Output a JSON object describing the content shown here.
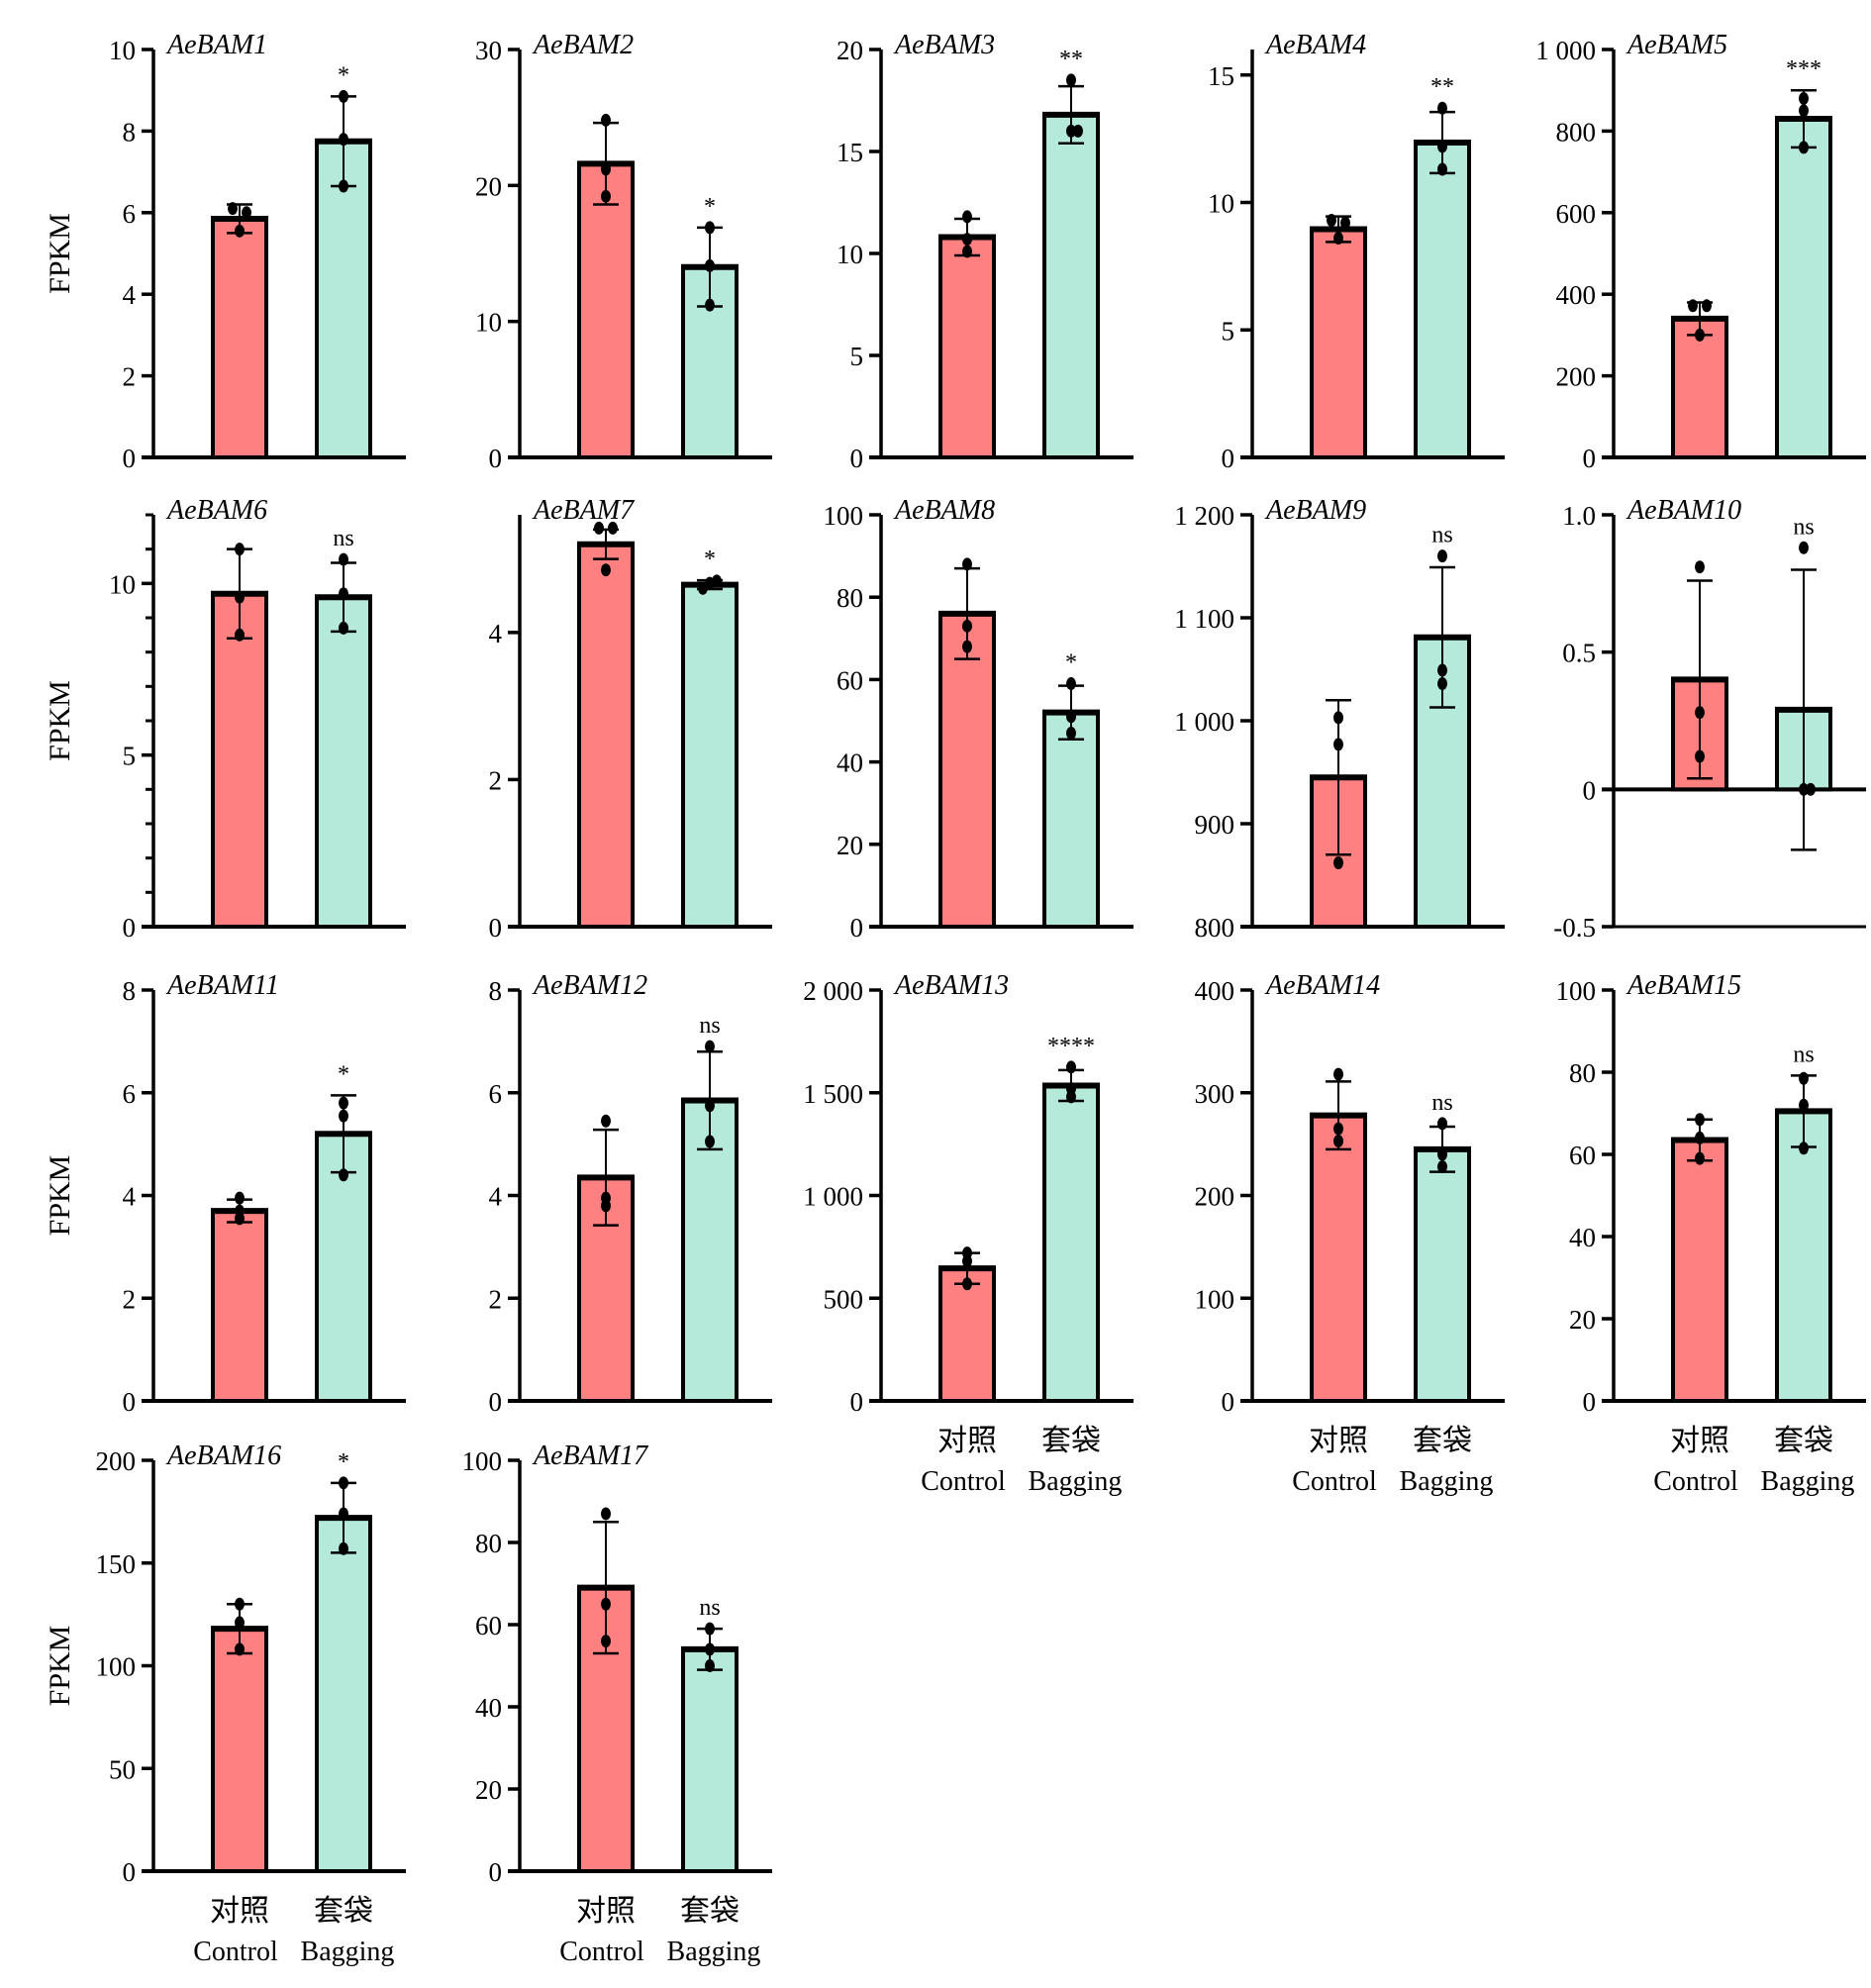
{
  "figure": {
    "y_axis_label": "FPKM",
    "group_labels_cn": [
      "对照",
      "套袋"
    ],
    "group_labels_en": [
      "Control",
      "Bagging"
    ],
    "colors": {
      "control": "#FF8080",
      "bagging": "#B5E9D9",
      "outline": "#000000"
    }
  },
  "chart_data": [
    {
      "type": "bar",
      "title": "AeBAM1",
      "ylabel": "FPKM",
      "categories": [
        "Control",
        "Bagging"
      ],
      "ylim": [
        0,
        10
      ],
      "yticks": [
        0,
        2,
        4,
        6,
        8,
        10
      ],
      "ytick_labels": [
        "0",
        "2",
        "4",
        "6",
        "8",
        "10"
      ],
      "values": [
        5.85,
        7.75
      ],
      "sd": [
        0.35,
        1.1
      ],
      "points": [
        [
          6.1,
          6.0,
          5.55
        ],
        [
          8.85,
          7.8,
          6.65
        ]
      ],
      "significance": "*"
    },
    {
      "type": "bar",
      "title": "AeBAM2",
      "ylabel": "",
      "categories": [
        "Control",
        "Bagging"
      ],
      "ylim": [
        0,
        30
      ],
      "yticks": [
        0,
        10,
        20,
        30
      ],
      "ytick_labels": [
        "0",
        "10",
        "20",
        "30"
      ],
      "values": [
        21.6,
        14.0
      ],
      "sd": [
        3.0,
        2.9
      ],
      "points": [
        [
          24.8,
          21.2,
          19.2
        ],
        [
          16.9,
          14.1,
          11.2
        ]
      ],
      "significance": "*"
    },
    {
      "type": "bar",
      "title": "AeBAM3",
      "ylabel": "",
      "categories": [
        "Control",
        "Bagging"
      ],
      "ylim": [
        0,
        20
      ],
      "yticks": [
        0,
        5,
        10,
        15,
        20
      ],
      "ytick_labels": [
        "0",
        "5",
        "10",
        "15",
        "20"
      ],
      "values": [
        10.8,
        16.8
      ],
      "sd": [
        0.9,
        1.4
      ],
      "points": [
        [
          11.8,
          10.7,
          10.1
        ],
        [
          18.5,
          16.0,
          16.0
        ]
      ],
      "significance": "**"
    },
    {
      "type": "bar",
      "title": "AeBAM4",
      "ylabel": "",
      "categories": [
        "Control",
        "Bagging"
      ],
      "ylim": [
        0,
        16
      ],
      "yticks": [
        0,
        5,
        10,
        15
      ],
      "ytick_labels": [
        "0",
        "5",
        "10",
        "15"
      ],
      "values": [
        8.95,
        12.35
      ],
      "sd": [
        0.5,
        1.2
      ],
      "points": [
        [
          9.3,
          9.2,
          8.6
        ],
        [
          13.7,
          12.2,
          11.3
        ]
      ],
      "significance": "**"
    },
    {
      "type": "bar",
      "title": "AeBAM5",
      "ylabel": "",
      "categories": [
        "Control",
        "Bagging"
      ],
      "ylim": [
        0,
        1000
      ],
      "yticks": [
        0,
        200,
        400,
        600,
        800,
        1000
      ],
      "ytick_labels": [
        "0",
        "200",
        "400",
        "600",
        "800",
        "1 000"
      ],
      "values": [
        340,
        830
      ],
      "sd": [
        40,
        70
      ],
      "points": [
        [
          372,
          372,
          300
        ],
        [
          880,
          850,
          760
        ]
      ],
      "significance": "***"
    },
    {
      "type": "bar",
      "title": "AeBAM6",
      "ylabel": "FPKM",
      "categories": [
        "Control",
        "Bagging"
      ],
      "ylim": [
        0,
        12
      ],
      "yticks": [
        0,
        5,
        10
      ],
      "ytick_labels": [
        "0",
        "5",
        "10"
      ],
      "minor_ticks": 1,
      "values": [
        9.7,
        9.6
      ],
      "sd": [
        1.3,
        1.0
      ],
      "points": [
        [
          11.0,
          9.6,
          8.5
        ],
        [
          10.7,
          9.7,
          8.7
        ]
      ],
      "significance": "ns"
    },
    {
      "type": "bar",
      "title": "AeBAM7",
      "ylabel": "",
      "categories": [
        "Control",
        "Bagging"
      ],
      "ylim": [
        0,
        5.6
      ],
      "yticks": [
        0,
        2,
        4
      ],
      "ytick_labels": [
        "0",
        "2",
        "4"
      ],
      "values": [
        5.2,
        4.65
      ],
      "sd": [
        0.2,
        0.06
      ],
      "points": [
        [
          5.42,
          5.42,
          4.85
        ],
        [
          4.6,
          4.7,
          4.67
        ]
      ],
      "significance": "*"
    },
    {
      "type": "bar",
      "title": "AeBAM8",
      "ylabel": "",
      "categories": [
        "Control",
        "Bagging"
      ],
      "ylim": [
        0,
        100
      ],
      "yticks": [
        0,
        20,
        40,
        60,
        80,
        100
      ],
      "ytick_labels": [
        "0",
        "20",
        "40",
        "60",
        "80",
        "100"
      ],
      "values": [
        76,
        52
      ],
      "sd": [
        11,
        6.5
      ],
      "points": [
        [
          88,
          73,
          68
        ],
        [
          59,
          51,
          47
        ]
      ],
      "significance": "*"
    },
    {
      "type": "bar",
      "title": "AeBAM9",
      "ylabel": "",
      "categories": [
        "Control",
        "Bagging"
      ],
      "ylim": [
        800,
        1200
      ],
      "yticks": [
        800,
        900,
        1000,
        1100,
        1200
      ],
      "ytick_labels": [
        "800",
        "900",
        "1 000",
        "1 100",
        "1 200"
      ],
      "values": [
        945,
        1081
      ],
      "sd": [
        75,
        68
      ],
      "points": [
        [
          1003,
          977,
          862
        ],
        [
          1160,
          1049,
          1036
        ]
      ],
      "significance": "ns"
    },
    {
      "type": "bar",
      "title": "AeBAM10",
      "ylabel": "",
      "categories": [
        "Control",
        "Bagging"
      ],
      "ylim": [
        -0.5,
        1.0
      ],
      "yticks": [
        -0.5,
        0,
        0.5,
        1.0
      ],
      "ytick_labels": [
        "-0.5",
        "0",
        "0.5",
        "1.0"
      ],
      "values": [
        0.4,
        0.29
      ],
      "sd": [
        0.36,
        0.51
      ],
      "points": [
        [
          0.81,
          0.28,
          0.12
        ],
        [
          0.88,
          0,
          0
        ]
      ],
      "significance": "ns"
    },
    {
      "type": "bar",
      "title": "AeBAM11",
      "ylabel": "FPKM",
      "categories": [
        "Control",
        "Bagging"
      ],
      "ylim": [
        0,
        8
      ],
      "yticks": [
        0,
        2,
        4,
        6,
        8
      ],
      "ytick_labels": [
        "0",
        "2",
        "4",
        "6",
        "8"
      ],
      "values": [
        3.7,
        5.2
      ],
      "sd": [
        0.22,
        0.75
      ],
      "points": [
        [
          3.95,
          3.7,
          3.55
        ],
        [
          5.8,
          5.55,
          4.4
        ]
      ],
      "significance": "*"
    },
    {
      "type": "bar",
      "title": "AeBAM12",
      "ylabel": "",
      "categories": [
        "Control",
        "Bagging"
      ],
      "ylim": [
        0,
        8
      ],
      "yticks": [
        0,
        2,
        4,
        6,
        8
      ],
      "ytick_labels": [
        "0",
        "2",
        "4",
        "6",
        "8"
      ],
      "values": [
        4.35,
        5.85
      ],
      "sd": [
        0.93,
        0.95
      ],
      "points": [
        [
          5.45,
          3.95,
          3.8
        ],
        [
          6.9,
          5.75,
          5.05
        ]
      ],
      "significance": "ns"
    },
    {
      "type": "bar",
      "title": "AeBAM13",
      "ylabel": "",
      "categories": [
        "Control",
        "Bagging"
      ],
      "ylim": [
        0,
        2000
      ],
      "yticks": [
        0,
        500,
        1000,
        1500,
        2000
      ],
      "ytick_labels": [
        "0",
        "500",
        "1 000",
        "1 500",
        "2 000"
      ],
      "values": [
        645,
        1535
      ],
      "sd": [
        75,
        75
      ],
      "points": [
        [
          720,
          680,
          570
        ],
        [
          1625,
          1520,
          1480
        ]
      ],
      "significance": "****",
      "show_xlabels": true
    },
    {
      "type": "bar",
      "title": "AeBAM14",
      "ylabel": "",
      "categories": [
        "Control",
        "Bagging"
      ],
      "ylim": [
        0,
        400
      ],
      "yticks": [
        0,
        100,
        200,
        300,
        400
      ],
      "ytick_labels": [
        "0",
        "100",
        "200",
        "300",
        "400"
      ],
      "values": [
        278,
        245
      ],
      "sd": [
        33,
        22
      ],
      "points": [
        [
          318,
          265,
          253
        ],
        [
          270,
          240,
          228
        ]
      ],
      "significance": "ns",
      "show_xlabels": true
    },
    {
      "type": "bar",
      "title": "AeBAM15",
      "ylabel": "",
      "categories": [
        "Control",
        "Bagging"
      ],
      "ylim": [
        0,
        100
      ],
      "yticks": [
        0,
        20,
        40,
        60,
        80,
        100
      ],
      "ytick_labels": [
        "0",
        "20",
        "40",
        "60",
        "80",
        "100"
      ],
      "values": [
        63.5,
        70.5
      ],
      "sd": [
        5,
        8.7
      ],
      "points": [
        [
          68.5,
          64,
          59
        ],
        [
          78.5,
          72,
          61.5
        ]
      ],
      "significance": "ns",
      "show_xlabels": true
    },
    {
      "type": "bar",
      "title": "AeBAM16",
      "ylabel": "FPKM",
      "categories": [
        "Control",
        "Bagging"
      ],
      "ylim": [
        0,
        200
      ],
      "yticks": [
        0,
        50,
        100,
        150,
        200
      ],
      "ytick_labels": [
        "0",
        "50",
        "100",
        "150",
        "200"
      ],
      "values": [
        118,
        172
      ],
      "sd": [
        12,
        17
      ],
      "points": [
        [
          130,
          121,
          108
        ],
        [
          189,
          174,
          157
        ]
      ],
      "significance": "*",
      "show_xlabels": true
    },
    {
      "type": "bar",
      "title": "AeBAM17",
      "ylabel": "",
      "categories": [
        "Control",
        "Bagging"
      ],
      "ylim": [
        0,
        100
      ],
      "yticks": [
        0,
        20,
        40,
        60,
        80,
        100
      ],
      "ytick_labels": [
        "0",
        "20",
        "40",
        "60",
        "80",
        "100"
      ],
      "values": [
        69,
        54
      ],
      "sd": [
        16,
        5
      ],
      "points": [
        [
          87,
          65,
          56
        ],
        [
          59,
          54,
          50
        ]
      ],
      "significance": "ns",
      "show_xlabels": true
    }
  ]
}
